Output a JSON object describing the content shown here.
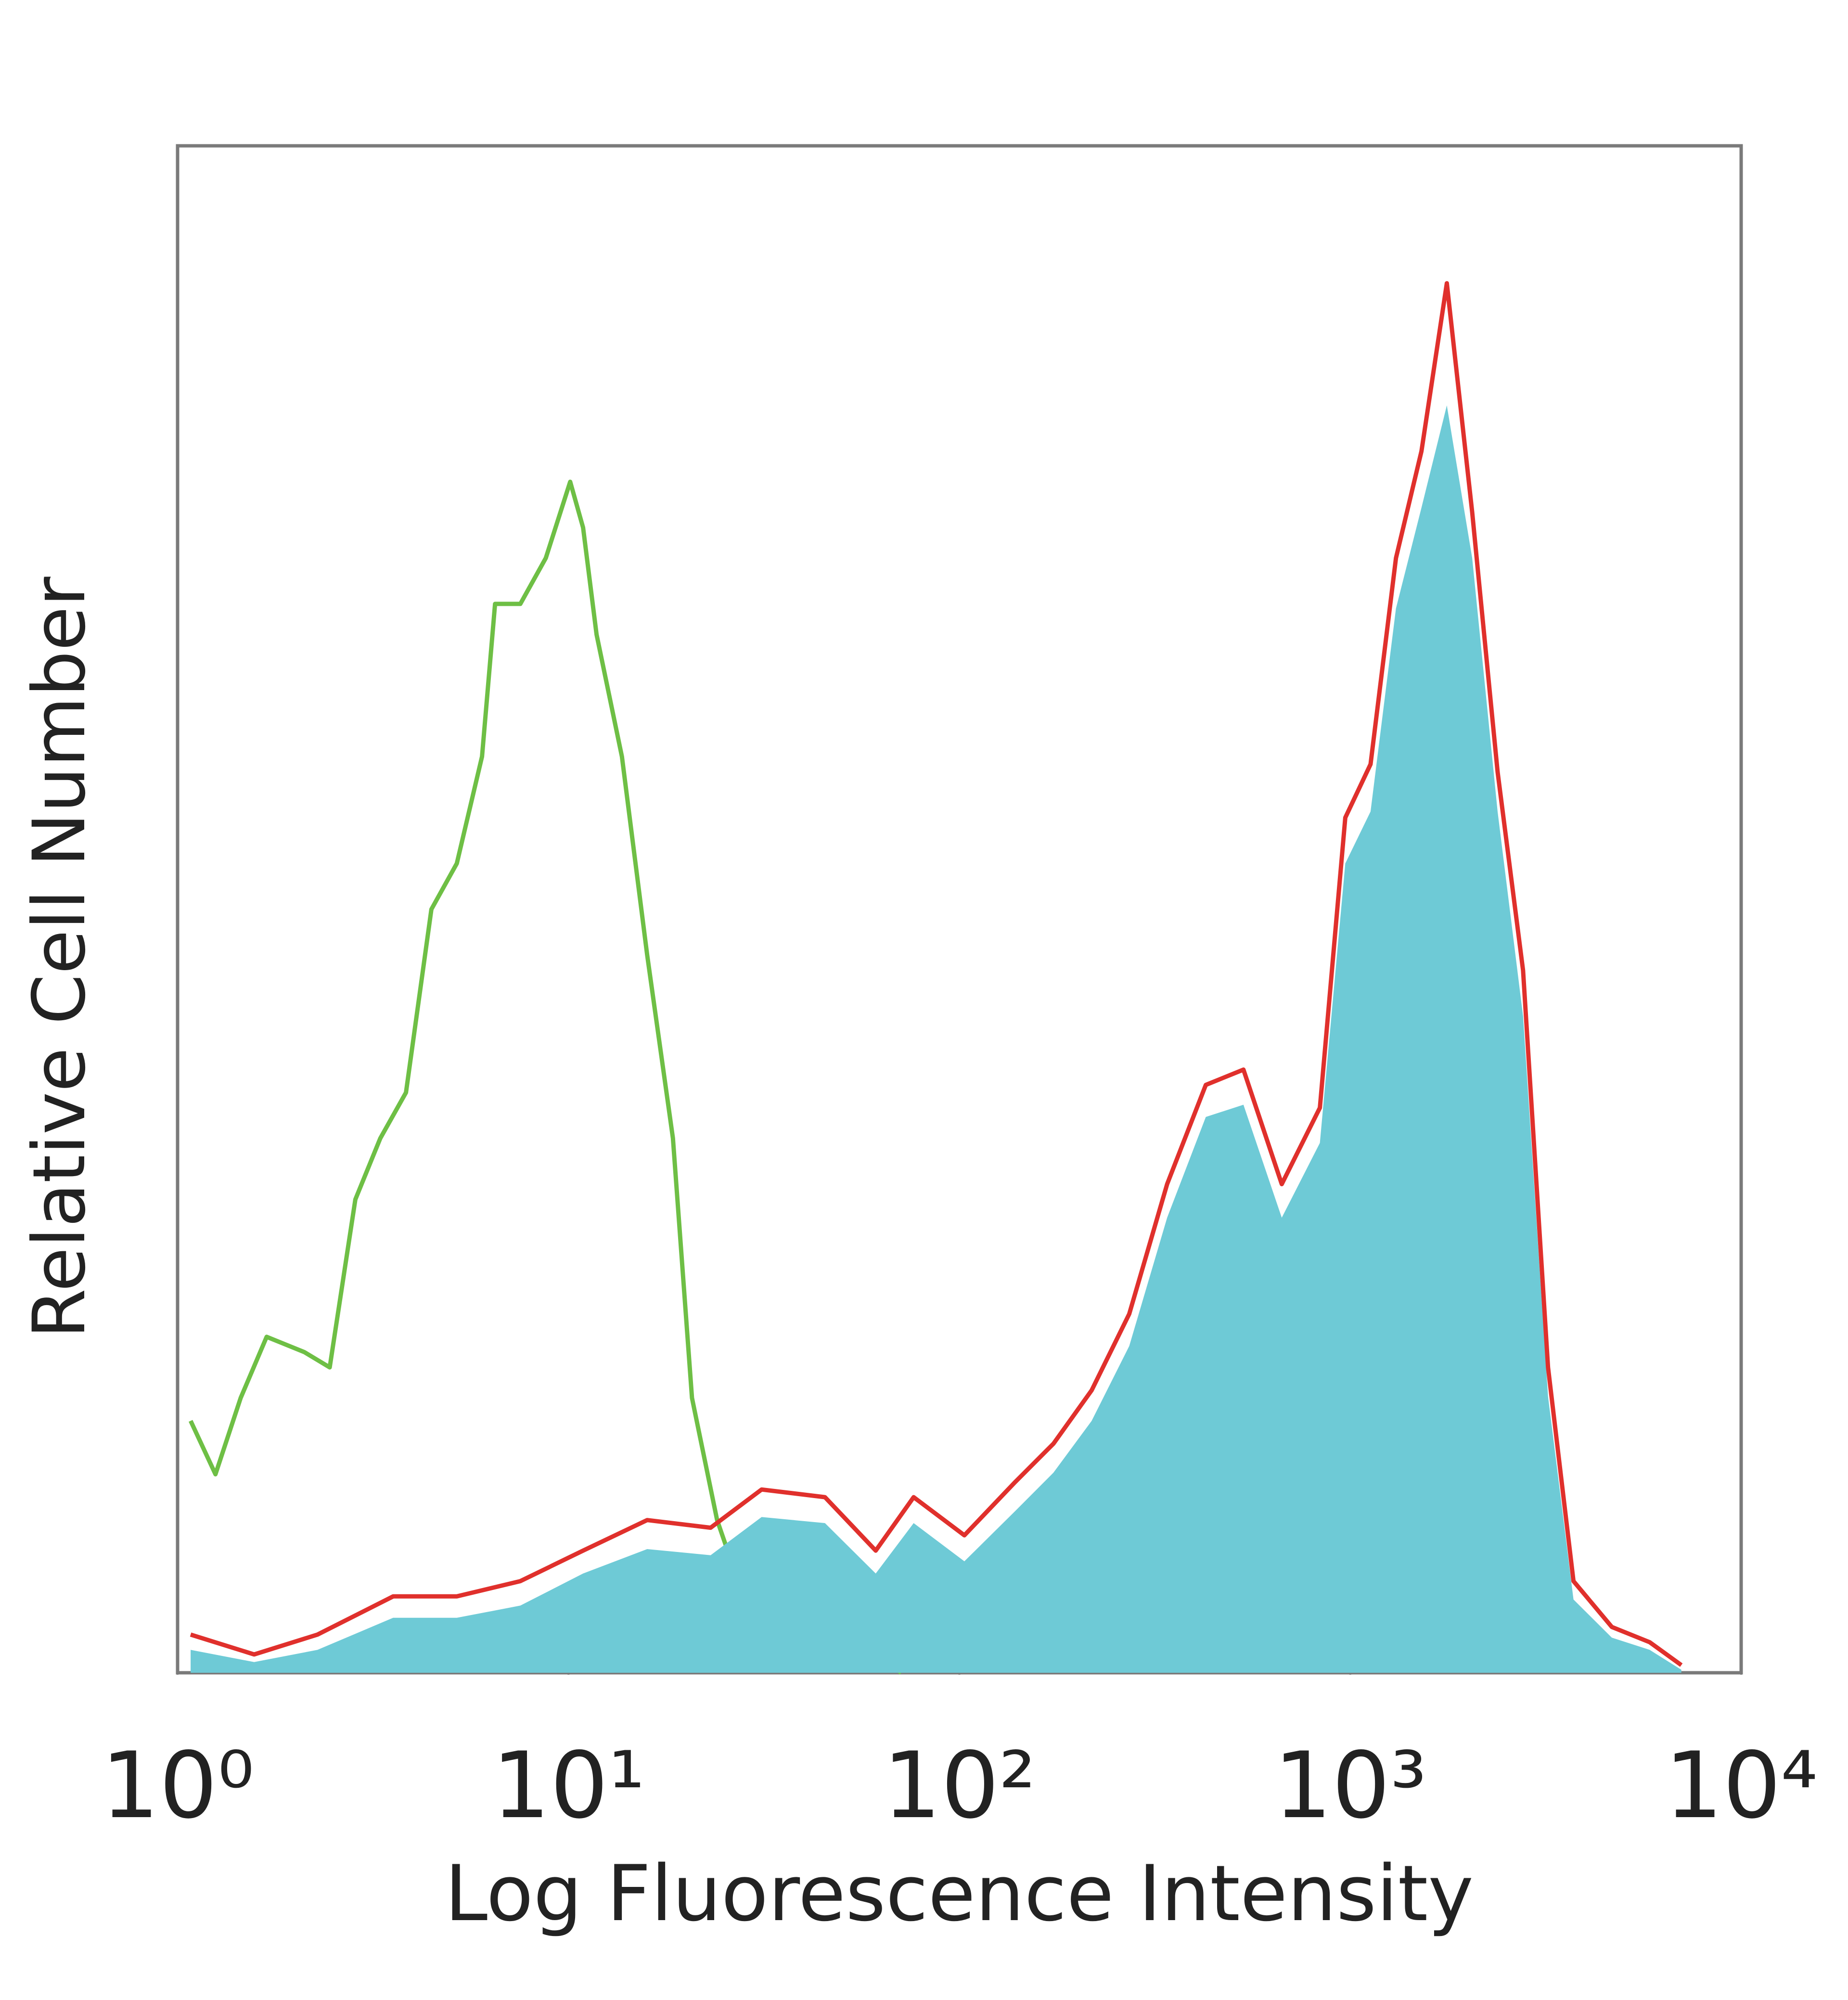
{
  "chart_data": {
    "type": "line",
    "x_label": "Log Fluorescence Intensity",
    "y_label": "Relative Cell Number",
    "xscale": "log",
    "xlim": [
      1,
      10000
    ],
    "ylim": [
      0,
      100
    ],
    "xticks": [
      {
        "value": 1,
        "label": "10⁰"
      },
      {
        "value": 10,
        "label": "10¹"
      },
      {
        "value": 100,
        "label": "10²"
      },
      {
        "value": 1000,
        "label": "10³"
      },
      {
        "value": 10000,
        "label": "10⁴"
      }
    ],
    "series": [
      {
        "color": "#6ebf45",
        "fill": false,
        "x": [
          1.08,
          1.25,
          1.45,
          1.69,
          2.11,
          2.45,
          2.85,
          3.3,
          3.84,
          4.46,
          5.18,
          6.01,
          6.49,
          7.53,
          8.75,
          10.1,
          10.9,
          11.8,
          13.7,
          15.9,
          18.5,
          20.7,
          24,
          28.9,
          36.1,
          48.8,
          65.8,
          71
        ],
        "values": [
          16.5,
          13,
          18,
          22,
          21,
          20,
          31,
          35,
          38,
          50,
          53,
          60,
          70,
          70,
          73,
          78,
          75,
          68,
          60,
          47,
          35,
          18,
          10,
          4,
          2.3,
          1.5,
          0.7,
          0
        ]
      },
      {
        "color": "#6ecad6",
        "fill": true,
        "x": [
          1.08,
          1.57,
          2.28,
          3.56,
          5.18,
          7.53,
          10.9,
          15.9,
          23.1,
          31.2,
          45.3,
          61.1,
          76.4,
          103,
          139,
          174,
          218,
          272,
          340,
          427,
          533,
          668,
          836,
          971,
          1127,
          1309,
          1521,
          1766,
          2051,
          2382,
          2767,
          3206,
          3724,
          4667,
          5834,
          7031
        ],
        "values": [
          1.5,
          0.7,
          1.5,
          3.6,
          3.6,
          4.4,
          6.5,
          8.1,
          7.7,
          10.2,
          9.8,
          6.5,
          9.8,
          7.3,
          10.6,
          13.1,
          16.5,
          21.4,
          29.8,
          36.4,
          37.2,
          29.8,
          34.7,
          53,
          56.4,
          69.7,
          76.3,
          83,
          73,
          56.4,
          43,
          18.1,
          4.8,
          2.3,
          1.5,
          0.2
        ]
      },
      {
        "color": "#e0302c",
        "fill": false,
        "x": [
          1.08,
          1.57,
          2.28,
          3.56,
          5.18,
          7.53,
          10.9,
          15.9,
          23.1,
          31.2,
          45.3,
          61.1,
          76.4,
          103,
          139,
          174,
          218,
          272,
          340,
          427,
          533,
          668,
          836,
          971,
          1127,
          1309,
          1521,
          1766,
          2051,
          2382,
          2767,
          3206,
          3724,
          4667,
          5834,
          7031
        ],
        "values": [
          2.5,
          1.2,
          2.5,
          5,
          5,
          6,
          8,
          10,
          9.5,
          12,
          11.5,
          8,
          11.5,
          9,
          12.5,
          15,
          18.5,
          23.5,
          32,
          38.5,
          39.5,
          32,
          37,
          56,
          59.5,
          73,
          80,
          91,
          76,
          59,
          46,
          20,
          6,
          3,
          2,
          0.5
        ]
      }
    ]
  }
}
